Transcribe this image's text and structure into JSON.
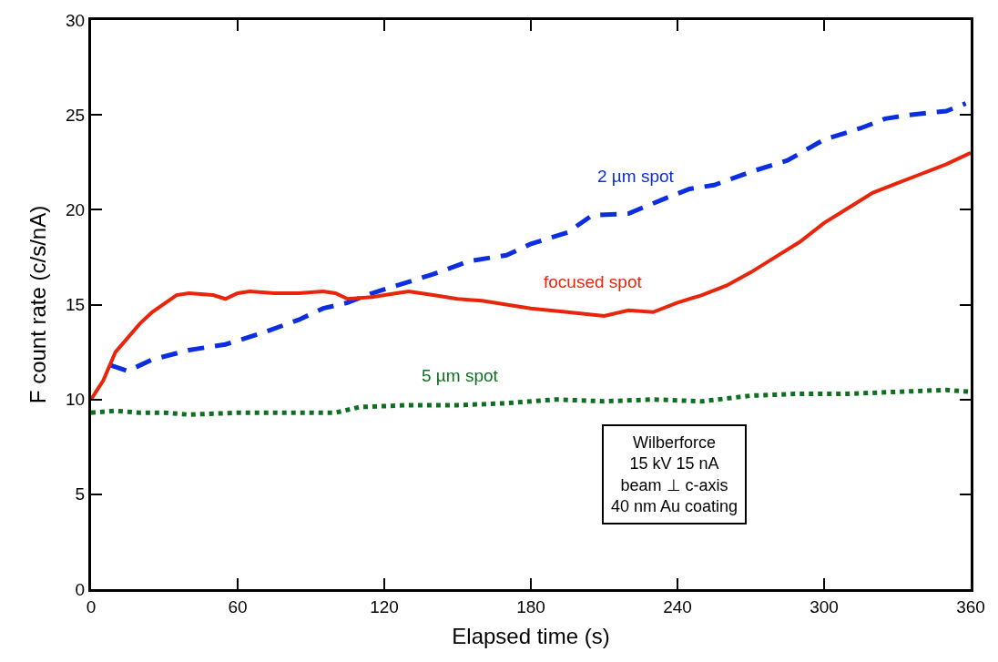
{
  "chart_data": {
    "type": "line",
    "xlabel": "Elapsed time (s)",
    "ylabel": "F count rate (c/s/nA)",
    "xlim": [
      0,
      360
    ],
    "xticks": [
      0,
      60,
      120,
      180,
      240,
      300,
      360
    ],
    "ylim": [
      0,
      30
    ],
    "yticks": [
      0,
      5,
      10,
      15,
      20,
      25,
      30
    ],
    "legend": false,
    "marker": "none",
    "series": [
      {
        "name": "2 µm spot",
        "color": "#0a2ee0",
        "line_style": "dashed",
        "x": [
          8,
          15,
          25,
          40,
          55,
          70,
          85,
          95,
          105,
          115,
          125,
          140,
          155,
          170,
          180,
          195,
          205,
          220,
          235,
          245,
          255,
          270,
          285,
          300,
          315,
          325,
          335,
          350,
          358
        ],
        "values": [
          11.8,
          11.5,
          12.1,
          12.6,
          12.9,
          13.5,
          14.2,
          14.8,
          15.1,
          15.6,
          16.0,
          16.6,
          17.3,
          17.6,
          18.2,
          18.8,
          19.7,
          19.8,
          20.6,
          21.1,
          21.3,
          22.0,
          22.6,
          23.7,
          24.3,
          24.8,
          25.0,
          25.2,
          25.6
        ]
      },
      {
        "name": "focused spot",
        "color": "#e8250a",
        "line_style": "solid",
        "x": [
          0,
          5,
          10,
          20,
          25,
          35,
          40,
          50,
          55,
          60,
          65,
          75,
          85,
          95,
          100,
          105,
          115,
          125,
          130,
          140,
          150,
          160,
          170,
          180,
          195,
          210,
          220,
          230,
          240,
          250,
          260,
          270,
          280,
          290,
          300,
          310,
          320,
          330,
          340,
          350,
          360
        ],
        "values": [
          10,
          11,
          12.5,
          14,
          14.6,
          15.5,
          15.6,
          15.5,
          15.3,
          15.6,
          15.7,
          15.6,
          15.6,
          15.7,
          15.6,
          15.3,
          15.4,
          15.6,
          15.7,
          15.5,
          15.3,
          15.2,
          15.0,
          14.8,
          14.6,
          14.4,
          14.7,
          14.6,
          15.1,
          15.5,
          16.0,
          16.7,
          17.5,
          18.3,
          19.3,
          20.1,
          20.9,
          21.4,
          21.9,
          22.4,
          23.0
        ]
      },
      {
        "name": "5 µm spot",
        "color": "#0d7021",
        "line_style": "dotted",
        "x": [
          0,
          10,
          20,
          30,
          40,
          60,
          80,
          100,
          110,
          130,
          150,
          170,
          190,
          210,
          230,
          250,
          270,
          290,
          310,
          330,
          350,
          360
        ],
        "values": [
          9.3,
          9.4,
          9.3,
          9.3,
          9.2,
          9.3,
          9.3,
          9.3,
          9.6,
          9.7,
          9.7,
          9.8,
          10.0,
          9.9,
          10.0,
          9.9,
          10.2,
          10.3,
          10.3,
          10.4,
          10.5,
          10.4
        ]
      }
    ],
    "annotations": [
      "Wilberforce\n15 kV 15 nA\nbeam ⊥ c-axis\n40 nm Au coating"
    ]
  }
}
